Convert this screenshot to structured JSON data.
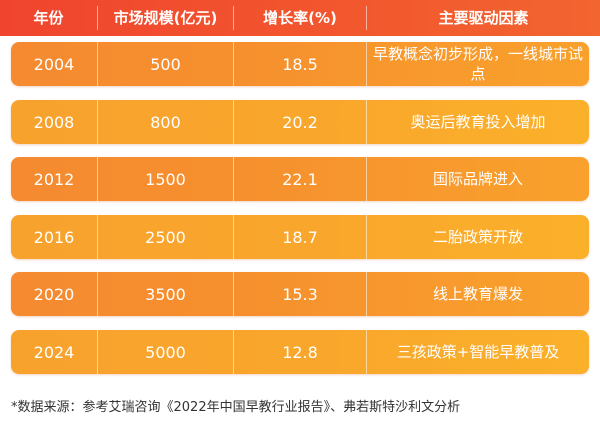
{
  "colors": {
    "header": "#f0442e",
    "row_dark": "#f58a30",
    "row_light": "#f9a62c",
    "text": "#ffffff"
  },
  "chart_data": {
    "type": "table",
    "columns": [
      "年份",
      "市场规模(亿元)",
      "增长率(%)",
      "主要驱动因素"
    ],
    "rows": [
      {
        "year": "2004",
        "size": "500",
        "growth": "18.5",
        "driver": "早教概念初步形成，一线城市试点"
      },
      {
        "year": "2008",
        "size": "800",
        "growth": "20.2",
        "driver": "奥运后教育投入增加"
      },
      {
        "year": "2012",
        "size": "1500",
        "growth": "22.1",
        "driver": "国际品牌进入"
      },
      {
        "year": "2016",
        "size": "2500",
        "growth": "18.7",
        "driver": "二胎政策开放"
      },
      {
        "year": "2020",
        "size": "3500",
        "growth": "15.3",
        "driver": "线上教育爆发"
      },
      {
        "year": "2024",
        "size": "5000",
        "growth": "12.8",
        "driver": "三孩政策+智能早教普及"
      }
    ]
  },
  "footnote": "*数据来源：参考艾瑞咨询《2022年中国早教行业报告》、弗若斯特沙利文分析"
}
